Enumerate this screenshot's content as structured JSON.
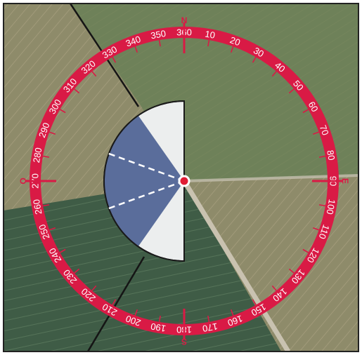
{
  "compass": {
    "ring_color": "#d91a45",
    "degree_labels": [
      "10",
      "20",
      "30",
      "40",
      "50",
      "60",
      "70",
      "80",
      "90",
      "100",
      "110",
      "120",
      "130",
      "140",
      "150",
      "160",
      "170",
      "180",
      "190",
      "200",
      "210",
      "220",
      "230",
      "240",
      "250",
      "260",
      "270",
      "280",
      "290",
      "300",
      "310",
      "320",
      "330",
      "340",
      "350",
      "360"
    ],
    "cardinals": {
      "north": "N",
      "east": "E",
      "south": "S",
      "west": "O"
    }
  },
  "sector": {
    "range_start_deg": 180,
    "range_end_deg": 360,
    "light_color": "#eceeee",
    "shaded_start_deg": 215,
    "shaded_end_deg": 325,
    "shaded_color": "#5a6d9b",
    "dashed_directions_deg": [
      250,
      290
    ]
  },
  "map": {
    "field_light": "#8e8b6a",
    "field_green": "#6e8159",
    "field_dark": "#3f5c46"
  }
}
